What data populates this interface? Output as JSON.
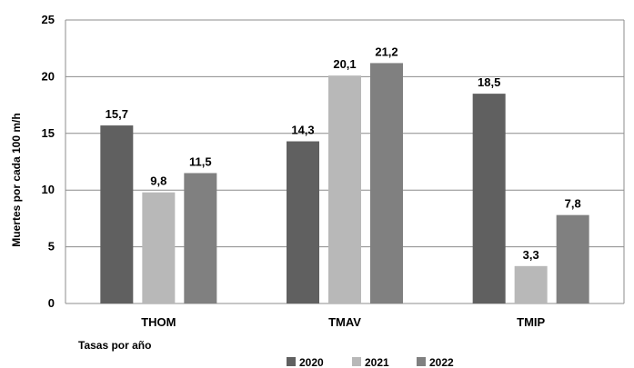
{
  "chart_data": {
    "type": "bar",
    "categories": [
      "THOM",
      "TMAV",
      "TMIP"
    ],
    "series": [
      {
        "name": "2020",
        "values": [
          15.7,
          14.3,
          18.5
        ],
        "color": "#606060"
      },
      {
        "name": "2021",
        "values": [
          9.8,
          20.1,
          3.3
        ],
        "color": "#b8b8b8"
      },
      {
        "name": "2022",
        "values": [
          11.5,
          21.2,
          7.8
        ],
        "color": "#808080"
      }
    ],
    "data_labels": [
      [
        "15,7",
        "14,3",
        "18,5"
      ],
      [
        "9,8",
        "20,1",
        "3,3"
      ],
      [
        "11,5",
        "21,2",
        "7,8"
      ]
    ],
    "title": "",
    "xlabel": "Tasas por año",
    "ylabel": "Muertes por cada 100 m/h",
    "ylim": [
      0,
      25
    ],
    "yticks": [
      0,
      5,
      10,
      15,
      20,
      25
    ],
    "grid": true,
    "legend_position": "bottom"
  }
}
